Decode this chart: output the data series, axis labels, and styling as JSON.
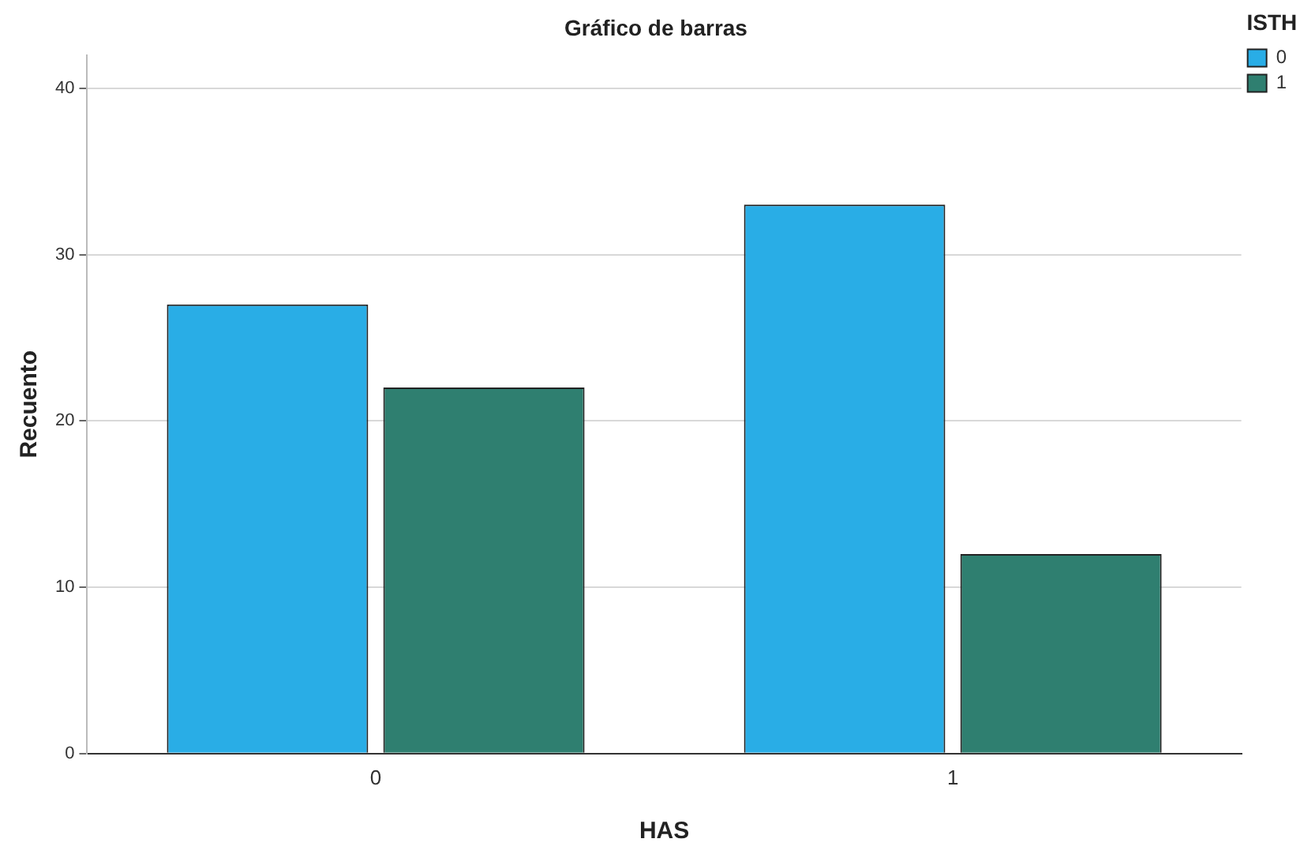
{
  "chart_data": {
    "type": "bar",
    "title": "Gráfico de barras",
    "xlabel": "HAS",
    "ylabel": "Recuento",
    "legend_title": "ISTH",
    "categories": [
      "0",
      "1"
    ],
    "series": [
      {
        "name": "0",
        "color": "#29ade6",
        "values": [
          27,
          33
        ]
      },
      {
        "name": "1",
        "color": "#2f7f70",
        "values": [
          22,
          12
        ]
      }
    ],
    "ylim": [
      0,
      42
    ],
    "yticks": [
      0,
      10,
      20,
      30,
      40
    ],
    "grid": "y",
    "legend": "top right"
  }
}
